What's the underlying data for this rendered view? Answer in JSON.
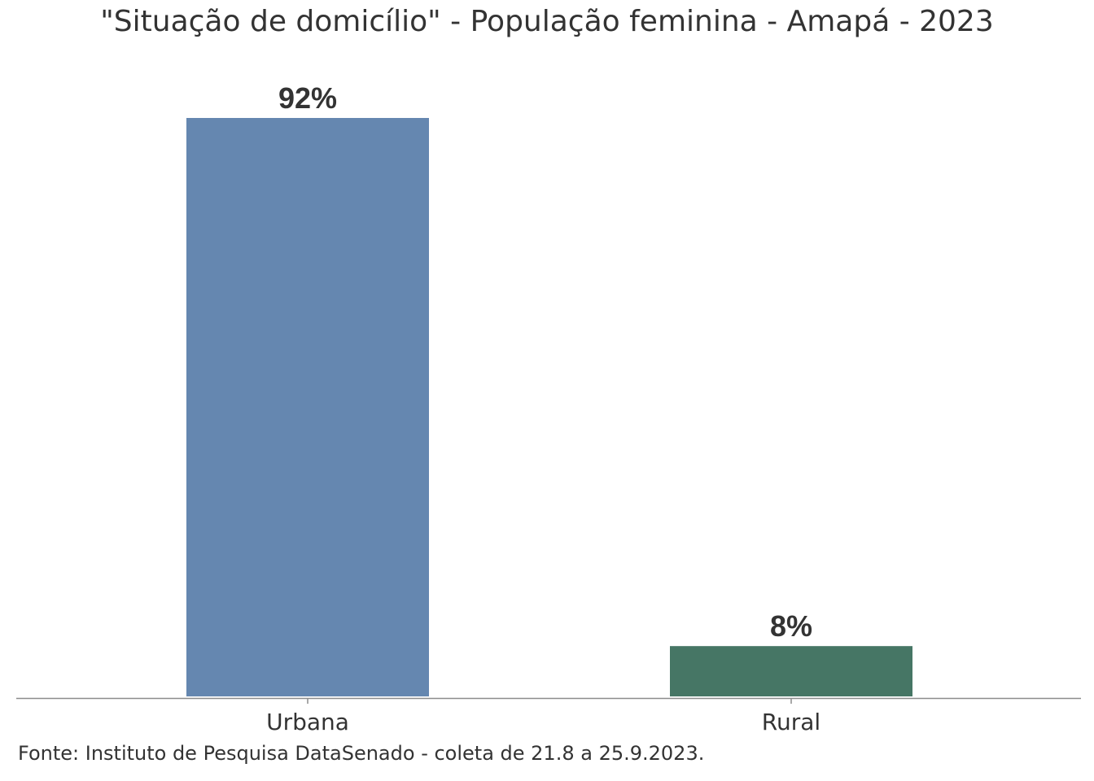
{
  "chart_data": {
    "type": "bar",
    "title": "\"Situação de domicílio\" - População feminina - Amapá - 2023",
    "categories": [
      "Urbana",
      "Rural"
    ],
    "values": [
      92,
      8
    ],
    "value_labels": [
      "92%",
      "8%"
    ],
    "colors": [
      "#6587B0",
      "#467665"
    ],
    "xlabel": "",
    "ylabel": "",
    "ylim": [
      0,
      92
    ],
    "grid": false,
    "legend": "none"
  },
  "source": "Fonte: Instituto de Pesquisa DataSenado - coleta de 21.8 a 25.9.2023."
}
